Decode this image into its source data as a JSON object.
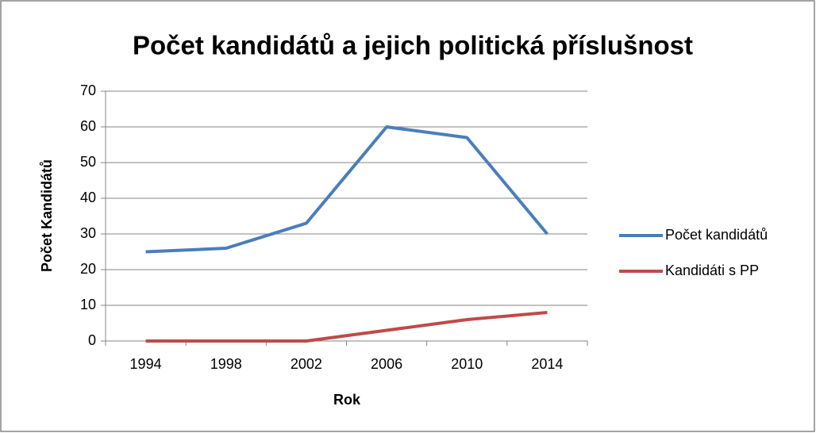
{
  "chart_data": {
    "type": "line",
    "title": "Počet kandidátů a jejich politická příslušnost",
    "x_label": "Rok",
    "y_label": "Počet Kandidátů",
    "categories": [
      "1994",
      "1998",
      "2002",
      "2006",
      "2010",
      "2014"
    ],
    "series": [
      {
        "name": "Počet kandidátů",
        "color": "#4a7ebb",
        "values": [
          25,
          26,
          33,
          60,
          57,
          30
        ]
      },
      {
        "name": "Kandidáti s PP",
        "color": "#be4b48",
        "values": [
          0,
          0,
          0,
          3,
          6,
          8
        ]
      }
    ],
    "ylim": [
      0,
      70
    ],
    "yticks": [
      0,
      10,
      20,
      30,
      40,
      50,
      60,
      70
    ],
    "grid": true,
    "legend": "right"
  }
}
